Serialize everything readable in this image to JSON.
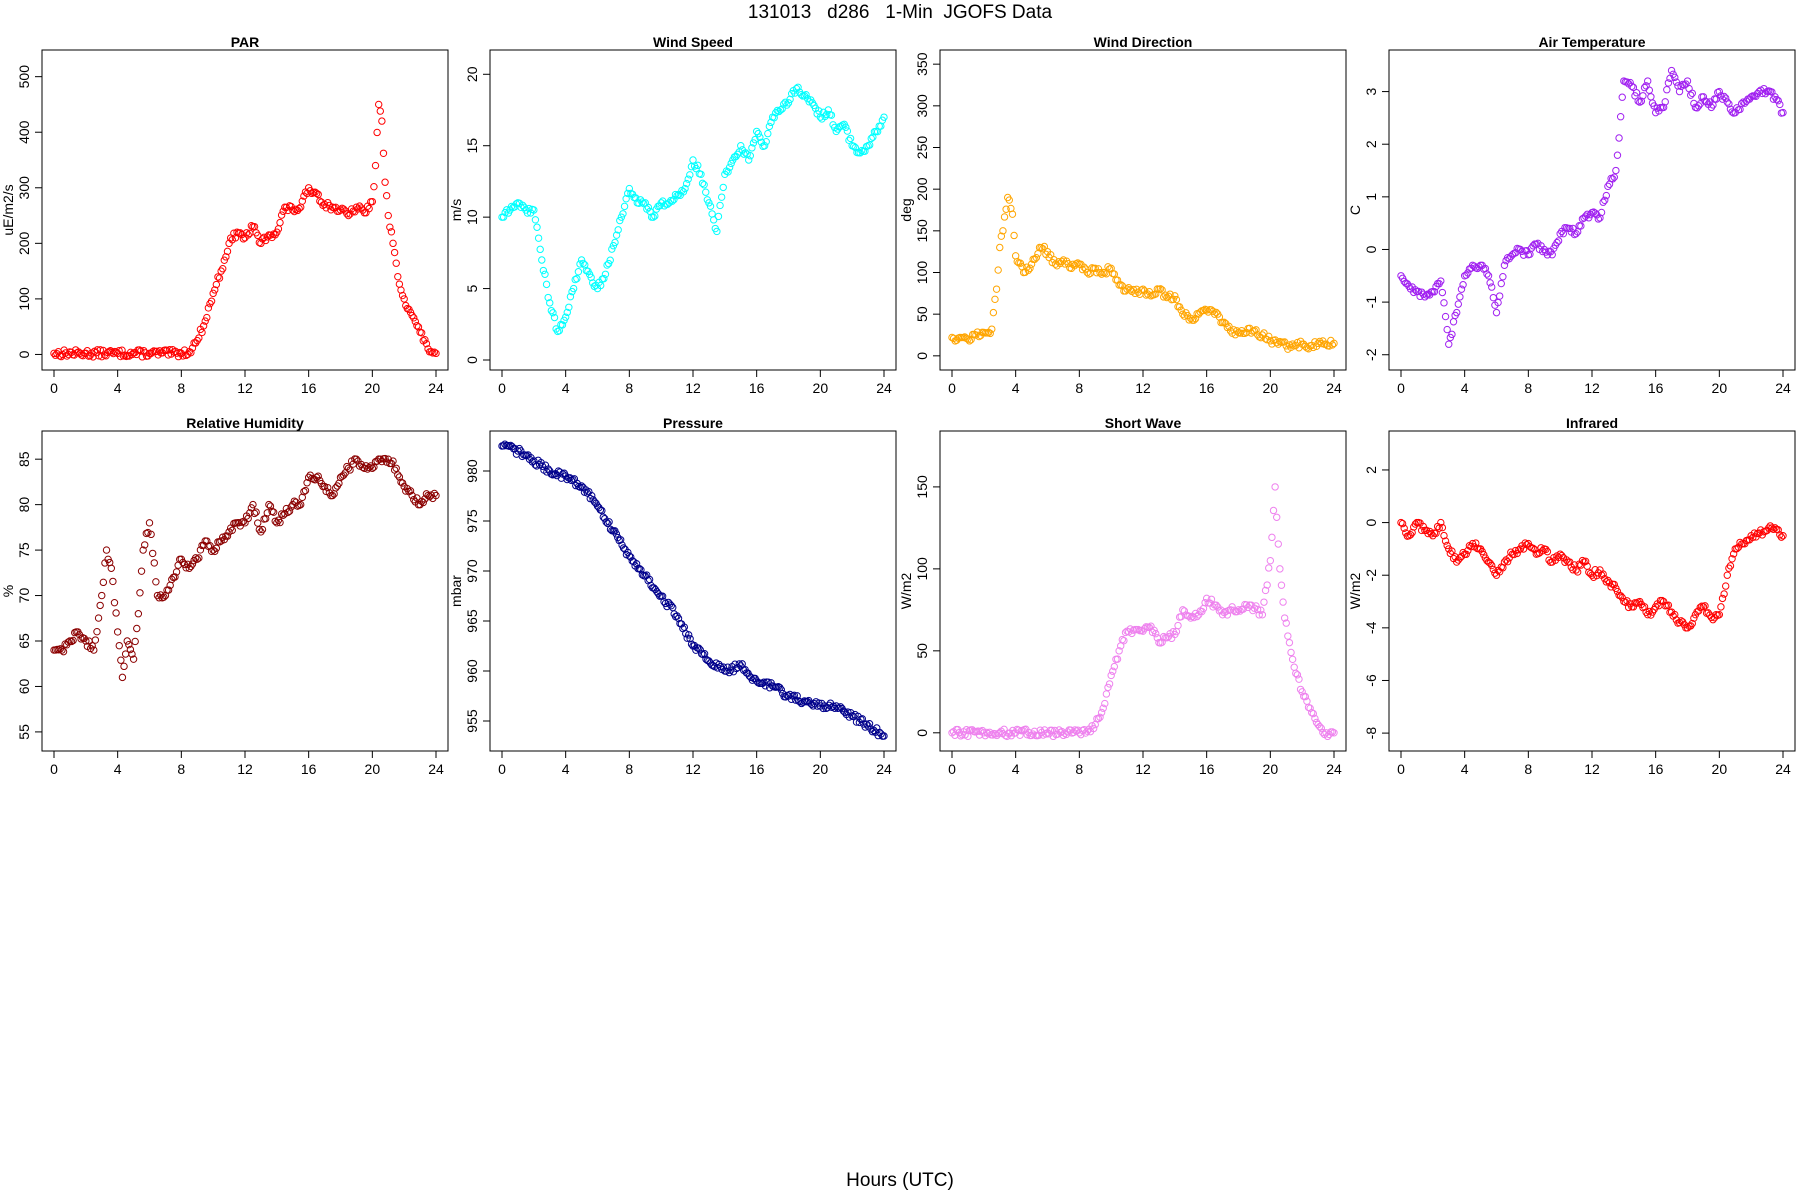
{
  "figure": {
    "title": "131013   d286   1-Min  JGOFS Data",
    "xlabel": "Hours (UTC)"
  },
  "chart_data": [
    {
      "type": "scatter",
      "title": "PAR",
      "ylabel": "uE/m2/s",
      "color": "#ff0000",
      "xlim": [
        0,
        24
      ],
      "ylim": [
        -10,
        530
      ],
      "xticks": [
        0,
        4,
        8,
        12,
        16,
        20,
        24
      ],
      "yticks": [
        0,
        100,
        200,
        300,
        400,
        500
      ],
      "x": [
        0,
        2,
        4,
        6,
        8,
        8.5,
        9,
        9.5,
        10,
        10.5,
        11,
        11.5,
        12,
        12.5,
        13,
        13.5,
        14,
        14.5,
        15,
        15.5,
        16,
        16.5,
        17,
        17.5,
        18,
        18.5,
        19,
        19.5,
        20,
        20.2,
        20.4,
        20.6,
        20.8,
        21,
        21.3,
        21.6,
        22,
        22.5,
        23,
        23.5,
        24
      ],
      "y": [
        2,
        2,
        2,
        2,
        2,
        5,
        25,
        60,
        110,
        150,
        200,
        220,
        210,
        230,
        200,
        215,
        220,
        265,
        260,
        265,
        300,
        290,
        270,
        265,
        260,
        250,
        265,
        255,
        275,
        340,
        450,
        420,
        310,
        250,
        200,
        140,
        100,
        70,
        40,
        10,
        2
      ]
    },
    {
      "type": "scatter",
      "title": "Wind Speed",
      "ylabel": "m/s",
      "color": "#00ffff",
      "xlim": [
        0,
        24
      ],
      "ylim": [
        0,
        21
      ],
      "xticks": [
        0,
        4,
        8,
        12,
        16,
        20,
        24
      ],
      "yticks": [
        0,
        5,
        10,
        15,
        20
      ],
      "x": [
        0,
        0.5,
        1,
        1.5,
        2,
        2.5,
        3,
        3.5,
        4,
        4.5,
        5,
        5.5,
        6,
        6.5,
        7,
        7.5,
        8,
        8.5,
        9,
        9.5,
        10,
        10.5,
        11,
        11.5,
        12,
        12.5,
        13,
        13.5,
        14,
        14.5,
        15,
        15.5,
        16,
        16.5,
        17,
        17.5,
        18,
        18.5,
        19,
        19.5,
        20,
        20.5,
        21,
        21.5,
        22,
        22.5,
        23,
        23.5,
        24
      ],
      "y": [
        10,
        10.5,
        11,
        10.5,
        10.5,
        7,
        4,
        2,
        3,
        5,
        7,
        6,
        5,
        6,
        8,
        10,
        12,
        11,
        11,
        10,
        11,
        11,
        11.5,
        12,
        14,
        13,
        11,
        9,
        13,
        14,
        15,
        14,
        16,
        15,
        17,
        17.5,
        18,
        19,
        18.5,
        18,
        17,
        17.5,
        16,
        16.5,
        15,
        14.5,
        15,
        16,
        17
      ]
    },
    {
      "type": "scatter",
      "title": "Wind Direction",
      "ylabel": "deg",
      "color": "#ffa500",
      "xlim": [
        0,
        24
      ],
      "ylim": [
        -5,
        355
      ],
      "xticks": [
        0,
        4,
        8,
        12,
        16,
        20,
        24
      ],
      "yticks": [
        0,
        50,
        100,
        150,
        200,
        250,
        300,
        350
      ],
      "x": [
        0,
        0.5,
        1,
        1.5,
        2,
        2.5,
        2.8,
        3,
        3.2,
        3.5,
        3.8,
        4,
        4.5,
        5,
        5.5,
        6,
        6.5,
        7,
        7.5,
        8,
        8.5,
        9,
        9.5,
        10,
        10.5,
        11,
        11.5,
        12,
        12.5,
        13,
        13.5,
        14,
        14.5,
        15,
        15.5,
        16,
        16.5,
        17,
        17.5,
        18,
        18.5,
        19,
        19.5,
        20,
        20.5,
        21,
        21.5,
        22,
        22.5,
        23,
        23.5,
        24
      ],
      "y": [
        22,
        22,
        20,
        25,
        28,
        32,
        80,
        130,
        150,
        190,
        170,
        120,
        100,
        110,
        130,
        125,
        110,
        115,
        105,
        110,
        100,
        105,
        100,
        105,
        85,
        80,
        75,
        80,
        72,
        80,
        70,
        72,
        50,
        45,
        50,
        55,
        50,
        40,
        30,
        28,
        28,
        30,
        25,
        18,
        14,
        12,
        12,
        14,
        12,
        15,
        14,
        15
      ]
    },
    {
      "type": "scatter",
      "title": "Air Temperature",
      "ylabel": "C",
      "color": "#a020f0",
      "xlim": [
        0,
        24
      ],
      "ylim": [
        -2.1,
        3.6
      ],
      "xticks": [
        0,
        4,
        8,
        12,
        16,
        20,
        24
      ],
      "yticks": [
        -2,
        -1,
        0,
        1,
        2,
        3
      ],
      "x": [
        0,
        0.5,
        1,
        1.5,
        2,
        2.5,
        3,
        3.5,
        4,
        4.5,
        5,
        5.5,
        6,
        6.5,
        7,
        7.5,
        8,
        8.5,
        9,
        9.5,
        10,
        10.5,
        11,
        11.5,
        12,
        12.5,
        13,
        13.5,
        14,
        14.5,
        15,
        15.5,
        16,
        16.5,
        17,
        17.5,
        18,
        18.5,
        19,
        19.5,
        20,
        20.5,
        21,
        21.5,
        22,
        22.5,
        23,
        23.5,
        24
      ],
      "y": [
        -0.5,
        -0.7,
        -0.8,
        -0.9,
        -0.8,
        -0.6,
        -1.8,
        -1.2,
        -0.5,
        -0.3,
        -0.3,
        -0.5,
        -1.2,
        -0.3,
        -0.1,
        0,
        -0.1,
        0.1,
        0,
        -0.1,
        0.3,
        0.4,
        0.3,
        0.6,
        0.7,
        0.6,
        1.2,
        1.5,
        3.2,
        3.1,
        2.8,
        3.2,
        2.6,
        2.7,
        3.4,
        3.0,
        3.2,
        2.7,
        2.9,
        2.7,
        3.0,
        2.8,
        2.6,
        2.8,
        2.9,
        3.0,
        3.0,
        2.9,
        2.6
      ]
    },
    {
      "type": "scatter",
      "title": "Relative Humidity",
      "ylabel": "%",
      "color": "#8b0000",
      "xlim": [
        0,
        24
      ],
      "ylim": [
        54,
        87
      ],
      "xticks": [
        0,
        4,
        8,
        12,
        16,
        20,
        24
      ],
      "yticks": [
        55,
        60,
        65,
        70,
        75,
        80,
        85
      ],
      "x": [
        0,
        0.5,
        1,
        1.5,
        2,
        2.5,
        3,
        3.3,
        3.6,
        4,
        4.3,
        4.6,
        5,
        5.3,
        5.6,
        6,
        6.5,
        7,
        7.5,
        8,
        8.5,
        9,
        9.5,
        10,
        10.5,
        11,
        11.5,
        12,
        12.5,
        13,
        13.5,
        14,
        14.5,
        15,
        15.5,
        16,
        16.5,
        17,
        17.5,
        18,
        18.5,
        19,
        19.5,
        20,
        20.5,
        21,
        21.5,
        22,
        22.5,
        23,
        23.5,
        24
      ],
      "y": [
        64,
        64,
        65,
        66,
        65,
        64,
        70,
        75,
        73,
        66,
        61,
        65,
        63,
        68,
        75,
        78,
        70,
        70,
        72,
        74,
        73,
        74,
        76,
        75,
        76,
        77,
        78,
        78,
        80,
        77,
        80,
        78,
        79,
        80,
        80,
        83,
        83,
        82,
        81,
        83,
        84,
        85,
        84,
        84,
        85,
        85,
        84,
        82,
        81,
        80,
        81,
        81
      ]
    },
    {
      "type": "scatter",
      "title": "Pressure",
      "ylabel": "mbar",
      "color": "#00008b",
      "xlim": [
        0,
        24
      ],
      "ylim": [
        953,
        983
      ],
      "xticks": [
        0,
        4,
        8,
        12,
        16,
        20,
        24
      ],
      "yticks": [
        955,
        960,
        965,
        970,
        975,
        980
      ],
      "x": [
        0,
        1,
        2,
        3,
        4,
        5,
        6,
        7,
        8,
        9,
        10,
        11,
        12,
        13,
        14,
        15,
        16,
        17,
        18,
        19,
        20,
        21,
        22,
        23,
        24
      ],
      "y": [
        982.5,
        982,
        981,
        980,
        979.5,
        978.5,
        976.5,
        974,
        971.5,
        969.5,
        967.5,
        965.5,
        962.5,
        961,
        960,
        960.5,
        959,
        958.5,
        957.5,
        957,
        956.5,
        956.5,
        955.5,
        954.5,
        953.5
      ]
    },
    {
      "type": "scatter",
      "title": "Short Wave",
      "ylabel": "W/m2",
      "color": "#ee82ee",
      "xlim": [
        0,
        24
      ],
      "ylim": [
        -5,
        178
      ],
      "xticks": [
        0,
        4,
        8,
        12,
        16,
        20,
        24
      ],
      "yticks": [
        0,
        50,
        100,
        150
      ],
      "x": [
        0,
        2,
        4,
        6,
        8,
        8.5,
        9,
        9.5,
        10,
        10.5,
        11,
        11.5,
        12,
        12.5,
        13,
        13.5,
        14,
        14.5,
        15,
        15.5,
        16,
        16.5,
        17,
        17.5,
        18,
        18.5,
        19,
        19.5,
        20,
        20.3,
        20.6,
        20.9,
        21.2,
        21.5,
        22,
        22.5,
        23,
        23.5,
        24
      ],
      "y": [
        0,
        0,
        0,
        0,
        0,
        1,
        5,
        15,
        35,
        50,
        62,
        63,
        62,
        65,
        55,
        58,
        60,
        75,
        70,
        72,
        82,
        78,
        72,
        75,
        75,
        78,
        76,
        72,
        105,
        150,
        100,
        70,
        55,
        40,
        25,
        15,
        5,
        0,
        0
      ]
    },
    {
      "type": "scatter",
      "title": "Infrared",
      "ylabel": "W/m2",
      "color": "#ff0000",
      "xlim": [
        0,
        24
      ],
      "ylim": [
        -8.3,
        3.1
      ],
      "xticks": [
        0,
        4,
        8,
        12,
        16,
        20,
        24
      ],
      "yticks": [
        -8,
        -6,
        -4,
        -2,
        0,
        2
      ],
      "x": [
        0,
        0.5,
        1,
        1.5,
        2,
        2.5,
        3,
        3.5,
        4,
        4.5,
        5,
        5.5,
        6,
        6.5,
        7,
        7.5,
        8,
        8.5,
        9,
        9.5,
        10,
        10.5,
        11,
        11.5,
        12,
        12.5,
        13,
        13.5,
        14,
        14.5,
        15,
        15.5,
        16,
        16.5,
        17,
        17.5,
        18,
        18.5,
        19,
        19.5,
        20,
        20.5,
        21,
        21.5,
        22,
        22.5,
        23,
        23.5,
        24
      ],
      "y": [
        0,
        -0.5,
        0,
        -0.3,
        -0.5,
        0,
        -1.0,
        -1.5,
        -1.2,
        -0.8,
        -1.0,
        -1.5,
        -2.0,
        -1.5,
        -1.2,
        -1.0,
        -0.8,
        -1.2,
        -1.0,
        -1.5,
        -1.2,
        -1.5,
        -1.8,
        -1.5,
        -2.0,
        -1.8,
        -2.2,
        -2.5,
        -3.0,
        -3.2,
        -3.0,
        -3.5,
        -3.2,
        -3.0,
        -3.4,
        -3.8,
        -4.0,
        -3.5,
        -3.2,
        -3.6,
        -3.5,
        -2.0,
        -1.0,
        -0.8,
        -0.5,
        -0.4,
        -0.3,
        -0.2,
        -0.5
      ]
    }
  ]
}
